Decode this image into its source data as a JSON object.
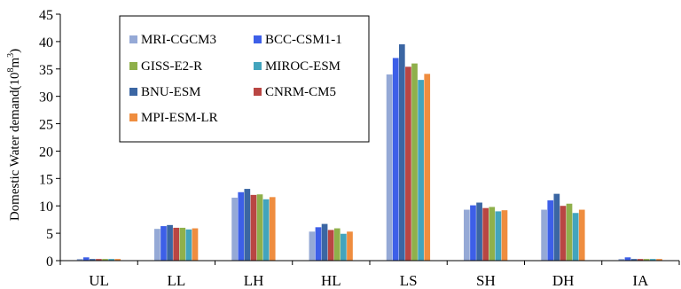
{
  "chart_data": {
    "type": "bar",
    "title": "",
    "xlabel": "",
    "ylabel": {
      "text": "Domestic Water demand(10",
      "sup1": "8",
      "mid": "m",
      "sup2": "3",
      "end": ")"
    },
    "ylim": [
      0,
      45
    ],
    "yticks": [
      0,
      5,
      10,
      15,
      20,
      25,
      30,
      35,
      40,
      45
    ],
    "grid": false,
    "legend_position": "top-left",
    "categories": [
      "UL",
      "LL",
      "LH",
      "HL",
      "LS",
      "SH",
      "DH",
      "IA"
    ],
    "series": [
      {
        "name": "MRI-CGCM3",
        "color": "#95a9d6",
        "values": [
          0.3,
          5.8,
          11.5,
          5.3,
          34.0,
          9.3,
          9.3,
          0.3
        ]
      },
      {
        "name": "BCC-CSM1-1",
        "color": "#3d5fe8",
        "values": [
          0.6,
          6.3,
          12.5,
          6.1,
          37.0,
          10.1,
          11.0,
          0.6
        ]
      },
      {
        "name": "BNU-ESM",
        "color": "#3b66a3",
        "values": [
          0.3,
          6.5,
          13.1,
          6.7,
          39.5,
          10.6,
          12.2,
          0.3
        ]
      },
      {
        "name": "CNRM-CM5",
        "color": "#b94643",
        "values": [
          0.3,
          6.0,
          12.0,
          5.6,
          35.4,
          9.6,
          10.0,
          0.3
        ]
      },
      {
        "name": "GISS-E2-R",
        "color": "#8fb04b",
        "values": [
          0.3,
          6.0,
          12.1,
          5.9,
          36.0,
          9.8,
          10.4,
          0.3
        ]
      },
      {
        "name": "MIROC-ESM",
        "color": "#42a4bd",
        "values": [
          0.3,
          5.7,
          11.2,
          4.9,
          33.0,
          9.0,
          8.7,
          0.3
        ]
      },
      {
        "name": "MPI-ESM-LR",
        "color": "#ef8d3f",
        "values": [
          0.3,
          5.9,
          11.6,
          5.3,
          34.1,
          9.2,
          9.3,
          0.3
        ]
      }
    ],
    "legend_order": [
      "MRI-CGCM3",
      "BCC-CSM1-1",
      "GISS-E2-R",
      "MIROC-ESM",
      "BNU-ESM",
      "CNRM-CM5",
      "MPI-ESM-LR"
    ]
  }
}
